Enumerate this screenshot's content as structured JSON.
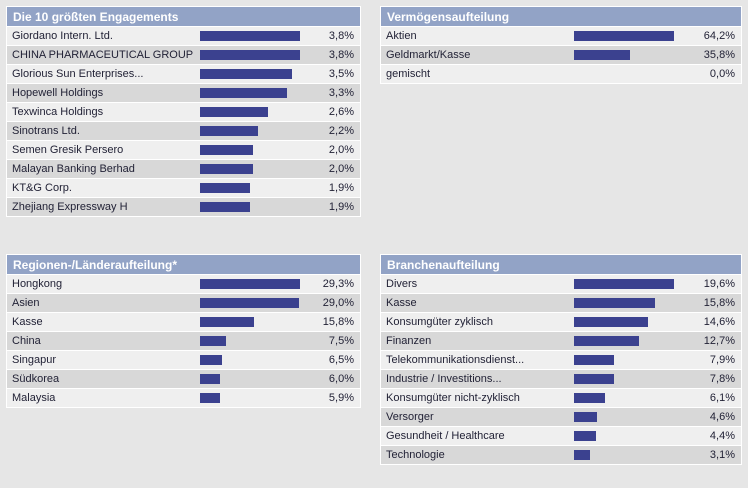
{
  "colors": {
    "page_bg": "#e6e6e6",
    "panel_border": "#ffffff",
    "header_bg": "#92a3c6",
    "header_text": "#ffffff",
    "row_light": "#efefef",
    "row_dark": "#d8d8d8",
    "bar": "#3b418f",
    "text": "#222236"
  },
  "chart_data": [
    {
      "type": "bar",
      "orientation": "horizontal",
      "position": "top-left",
      "title": "Die 10 größten Engagements",
      "bar_scale": "relative-to-max",
      "unit": "%",
      "categories": [
        "Giordano Intern. Ltd.",
        "CHINA PHARMACEUTICAL GROUP",
        "Glorious Sun Enterprises...",
        "Hopewell Holdings",
        "Texwinca Holdings",
        "Sinotrans Ltd.",
        "Semen Gresik Persero",
        "Malayan Banking Berhad",
        "KT&G Corp.",
        "Zhejiang Expressway H"
      ],
      "values": [
        3.8,
        3.8,
        3.5,
        3.3,
        2.6,
        2.2,
        2.0,
        2.0,
        1.9,
        1.9
      ],
      "value_labels": [
        "3,8%",
        "3,8%",
        "3,5%",
        "3,3%",
        "2,6%",
        "2,2%",
        "2,0%",
        "2,0%",
        "1,9%",
        "1,9%"
      ]
    },
    {
      "type": "bar",
      "orientation": "horizontal",
      "position": "top-right",
      "title": "Vermögensaufteilung",
      "bar_scale": "relative-to-max",
      "unit": "%",
      "categories": [
        "Aktien",
        "Geldmarkt/Kasse",
        "gemischt"
      ],
      "values": [
        64.2,
        35.8,
        0.0
      ],
      "value_labels": [
        "64,2%",
        "35,8%",
        "0,0%"
      ]
    },
    {
      "type": "bar",
      "orientation": "horizontal",
      "position": "bottom-left",
      "title": "Regionen-/Länderaufteilung*",
      "bar_scale": "relative-to-max",
      "unit": "%",
      "categories": [
        "Hongkong",
        "Asien",
        "Kasse",
        "China",
        "Singapur",
        "Südkorea",
        "Malaysia"
      ],
      "values": [
        29.3,
        29.0,
        15.8,
        7.5,
        6.5,
        6.0,
        5.9
      ],
      "value_labels": [
        "29,3%",
        "29,0%",
        "15,8%",
        "7,5%",
        "6,5%",
        "6,0%",
        "5,9%"
      ]
    },
    {
      "type": "bar",
      "orientation": "horizontal",
      "position": "bottom-right",
      "title": "Branchenaufteilung",
      "bar_scale": "relative-to-max",
      "unit": "%",
      "categories": [
        "Divers",
        "Kasse",
        "Konsumgüter zyklisch",
        "Finanzen",
        "Telekommunikationsdienst...",
        "Industrie / Investitions...",
        "Konsumgüter nicht-zyklisch",
        "Versorger",
        "Gesundheit / Healthcare",
        "Technologie"
      ],
      "values": [
        19.6,
        15.8,
        14.6,
        12.7,
        7.9,
        7.8,
        6.1,
        4.6,
        4.4,
        3.1
      ],
      "value_labels": [
        "19,6%",
        "15,8%",
        "14,6%",
        "12,7%",
        "7,9%",
        "7,8%",
        "6,1%",
        "4,6%",
        "4,4%",
        "3,1%"
      ]
    }
  ]
}
